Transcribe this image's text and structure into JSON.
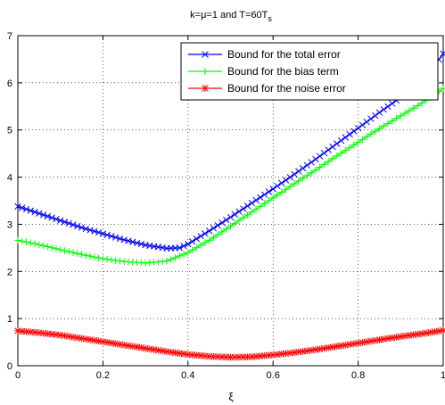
{
  "chart_data": {
    "type": "line",
    "title": {
      "pre": "k=μ=1 and T=60T",
      "sub": "s"
    },
    "xlabel": "ξ",
    "ylabel": "",
    "xlim": [
      0,
      1
    ],
    "ylim": [
      0,
      7
    ],
    "xticks": [
      "0",
      "0.2",
      "0.4",
      "0.6",
      "0.8",
      "1"
    ],
    "yticks": [
      "0",
      "1",
      "2",
      "3",
      "4",
      "5",
      "6",
      "7"
    ],
    "grid": true,
    "legend_position": "top-right",
    "series": [
      {
        "name": "Bound for the total error",
        "color": "#0000ff",
        "marker": "x",
        "x": [
          0,
          0.05,
          0.1,
          0.15,
          0.2,
          0.25,
          0.3,
          0.35,
          0.38,
          0.4,
          0.45,
          0.5,
          0.55,
          0.6,
          0.65,
          0.7,
          0.75,
          0.8,
          0.85,
          0.9,
          0.95,
          1.0
        ],
        "y": [
          3.38,
          3.23,
          3.08,
          2.93,
          2.8,
          2.67,
          2.56,
          2.49,
          2.5,
          2.58,
          2.86,
          3.15,
          3.45,
          3.75,
          4.06,
          4.38,
          4.71,
          5.04,
          5.37,
          5.69,
          6.0,
          6.62
        ]
      },
      {
        "name": "Bound for the bias term",
        "color": "#00ff00",
        "marker": "+",
        "x": [
          0,
          0.05,
          0.1,
          0.15,
          0.2,
          0.25,
          0.3,
          0.35,
          0.4,
          0.45,
          0.5,
          0.55,
          0.6,
          0.65,
          0.7,
          0.75,
          0.8,
          0.85,
          0.9,
          0.95,
          1.0
        ],
        "y": [
          2.66,
          2.57,
          2.46,
          2.36,
          2.27,
          2.21,
          2.18,
          2.22,
          2.4,
          2.66,
          2.96,
          3.26,
          3.56,
          3.86,
          4.15,
          4.45,
          4.74,
          5.03,
          5.3,
          5.57,
          5.88
        ]
      },
      {
        "name": "Bound for the noise error",
        "color": "#ff0000",
        "marker": "*",
        "x": [
          0,
          0.05,
          0.1,
          0.15,
          0.2,
          0.25,
          0.3,
          0.35,
          0.4,
          0.45,
          0.5,
          0.55,
          0.6,
          0.65,
          0.7,
          0.75,
          0.8,
          0.85,
          0.9,
          0.95,
          1.0
        ],
        "y": [
          0.74,
          0.7,
          0.65,
          0.58,
          0.51,
          0.44,
          0.37,
          0.3,
          0.24,
          0.2,
          0.18,
          0.19,
          0.23,
          0.28,
          0.34,
          0.41,
          0.48,
          0.55,
          0.62,
          0.68,
          0.75
        ]
      }
    ]
  }
}
